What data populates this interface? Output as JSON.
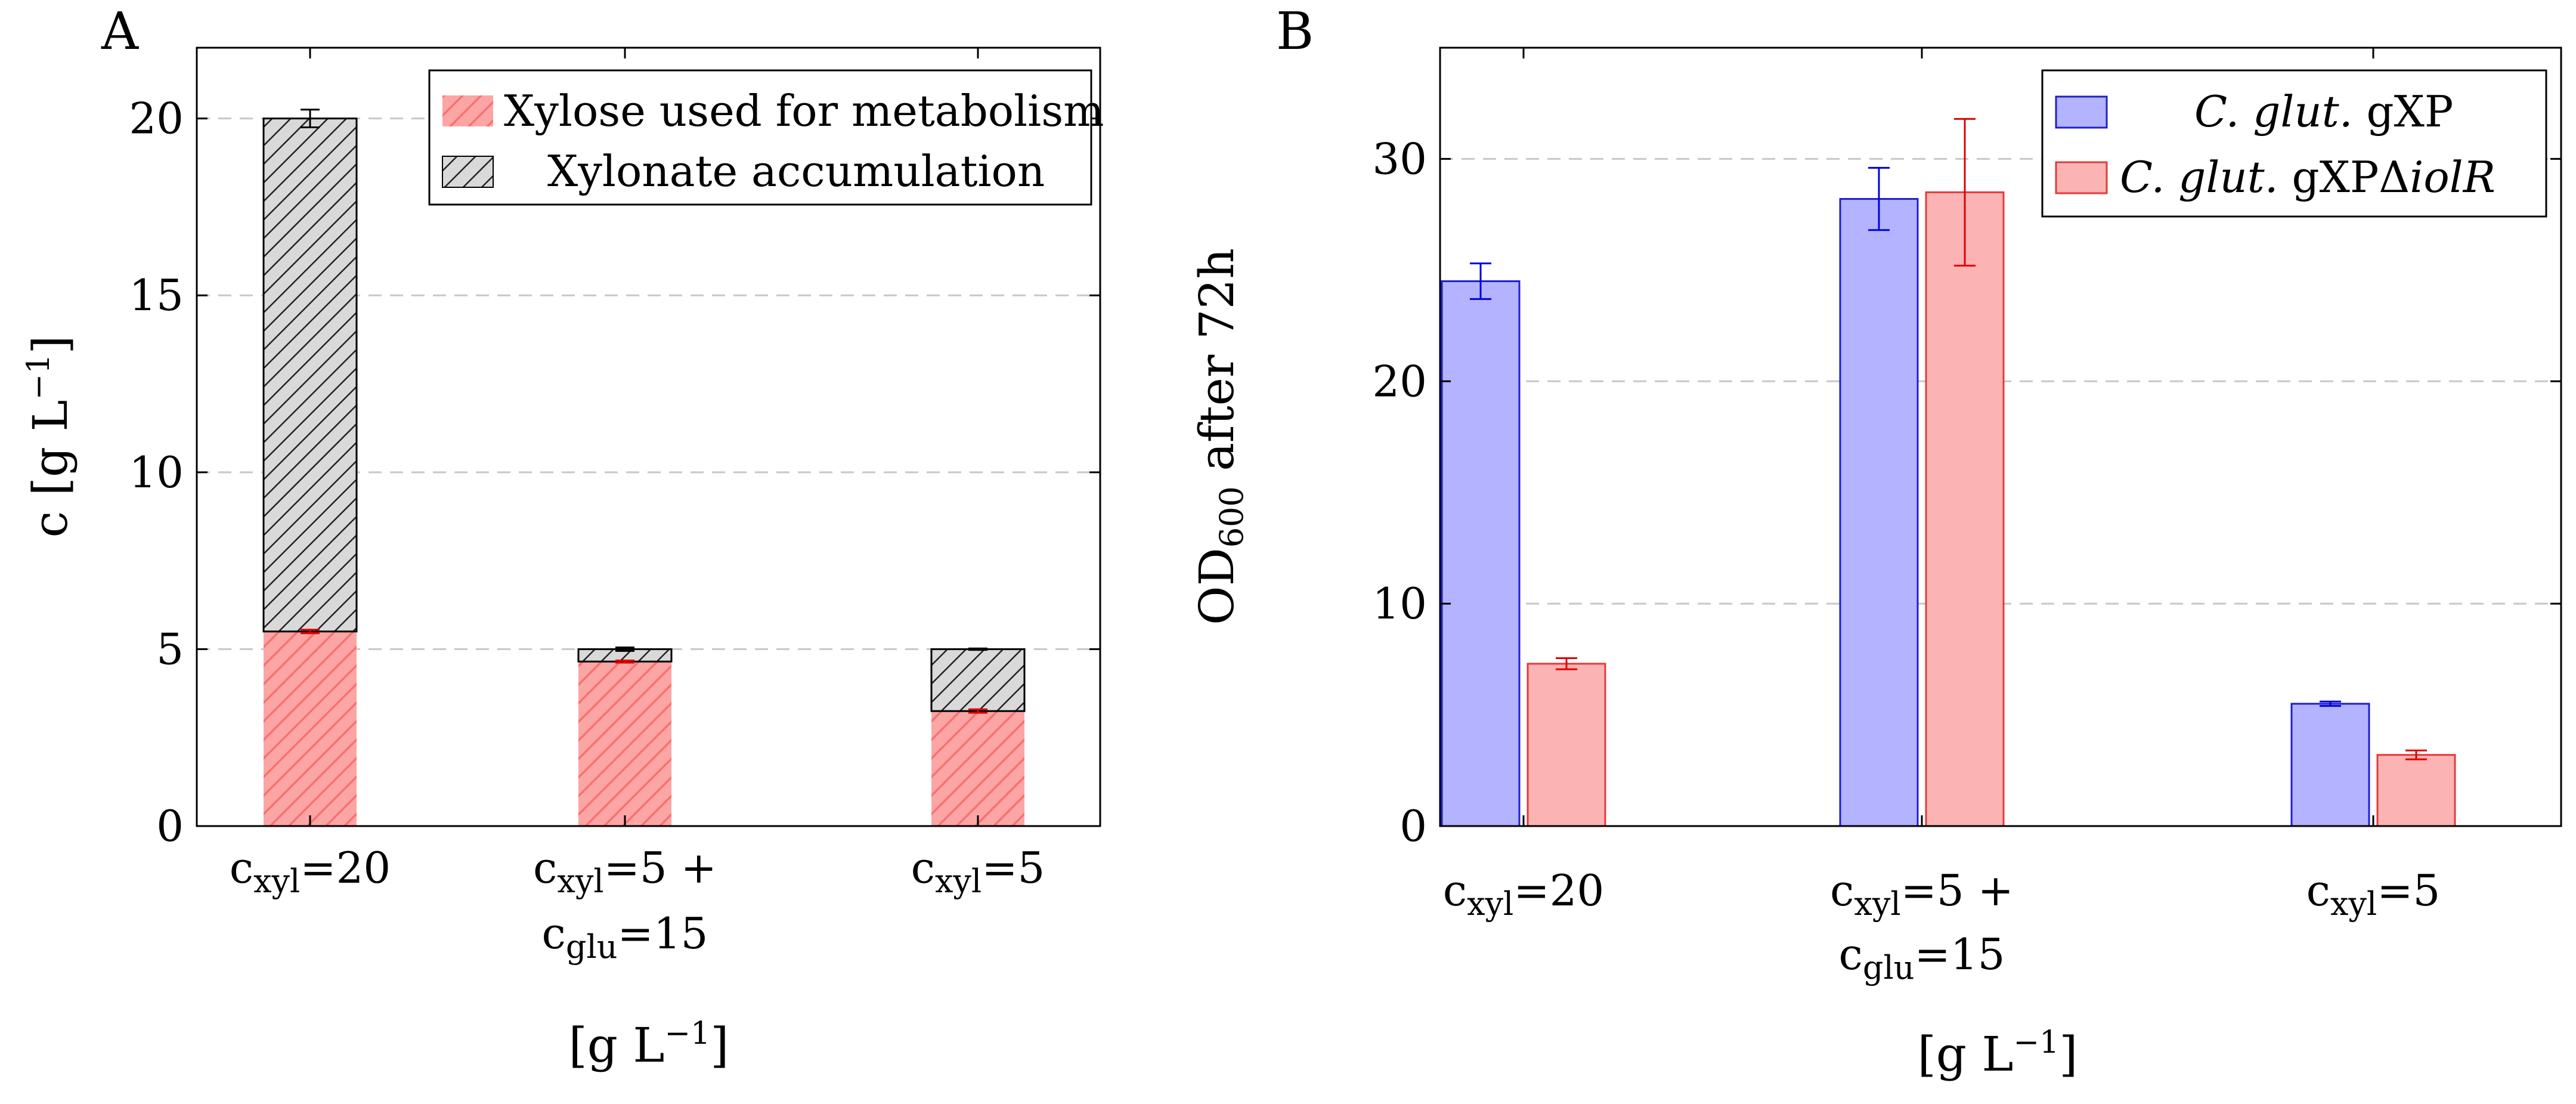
{
  "chart_data": [
    {
      "panel": "A",
      "type": "bar",
      "stacked": true,
      "title": "",
      "ylabel": "c [g L⁻¹]",
      "xlabel": "[g L⁻¹]",
      "ylim": [
        0,
        22
      ],
      "yticks": [
        0,
        5,
        10,
        15,
        20
      ],
      "grid": "horizontal dashed",
      "legend_position": "top-right",
      "categories": [
        {
          "main": "c",
          "sub": "xyl",
          "rest": "=20",
          "line2_main": "",
          "line2_sub": "",
          "line2_rest": ""
        },
        {
          "main": "c",
          "sub": "xyl",
          "rest": "=5 +",
          "line2_main": "c",
          "line2_sub": "glu",
          "line2_rest": "=15"
        },
        {
          "main": "c",
          "sub": "xyl",
          "rest": "=5",
          "line2_main": "",
          "line2_sub": "",
          "line2_rest": ""
        }
      ],
      "series": [
        {
          "name": "Xylose used for metabolism",
          "values": [
            5.5,
            4.65,
            3.25
          ],
          "errors": [
            0.05,
            0.03,
            0.05
          ],
          "fill": "#fca5a5",
          "hatch": "#f87171",
          "error_color": "#e00000"
        },
        {
          "name": "Xylonate accumulation",
          "values": [
            14.5,
            0.35,
            1.75
          ],
          "errors": [
            0.25,
            0.05,
            0.02
          ],
          "fill": "#d9d9d9",
          "hatch": "#222222",
          "error_color": "#000000"
        }
      ]
    },
    {
      "panel": "B",
      "type": "bar",
      "stacked": false,
      "title": "",
      "ylabel": {
        "main": "OD",
        "sub": "600",
        "rest": " after 72h"
      },
      "xlabel": "[g L⁻¹]",
      "ylim": [
        0,
        35
      ],
      "yticks": [
        0,
        10,
        20,
        30
      ],
      "grid": "horizontal dashed",
      "legend_position": "top-right",
      "categories": [
        {
          "main": "c",
          "sub": "xyl",
          "rest": "=20",
          "line2_main": "",
          "line2_sub": "",
          "line2_rest": ""
        },
        {
          "main": "c",
          "sub": "xyl",
          "rest": "=5 +",
          "line2_main": "c",
          "line2_sub": "glu",
          "line2_rest": "=15"
        },
        {
          "main": "c",
          "sub": "xyl",
          "rest": "=5",
          "line2_main": "",
          "line2_sub": "",
          "line2_rest": ""
        }
      ],
      "series": [
        {
          "name": "C. glut. gXP",
          "label_parts": [
            {
              "t": "C. glut.",
              "italic": true
            },
            {
              "t": " gXP",
              "italic": false
            }
          ],
          "values": [
            24.5,
            28.2,
            5.5
          ],
          "errors": [
            0.8,
            1.4,
            0.1
          ],
          "fill": "#b3b3ff",
          "stroke": "#1f1fcc",
          "error_color": "#0000dd"
        },
        {
          "name": "C. glut. gXPΔiolR",
          "label_parts": [
            {
              "t": "C. glut.",
              "italic": true
            },
            {
              "t": " gXPΔ",
              "italic": false
            },
            {
              "t": "iolR",
              "italic": true
            }
          ],
          "values": [
            7.3,
            28.5,
            3.2
          ],
          "errors": [
            0.25,
            3.3,
            0.2
          ],
          "fill": "#fcb3b3",
          "stroke": "#e23b3b",
          "error_color": "#e00000"
        }
      ]
    }
  ]
}
